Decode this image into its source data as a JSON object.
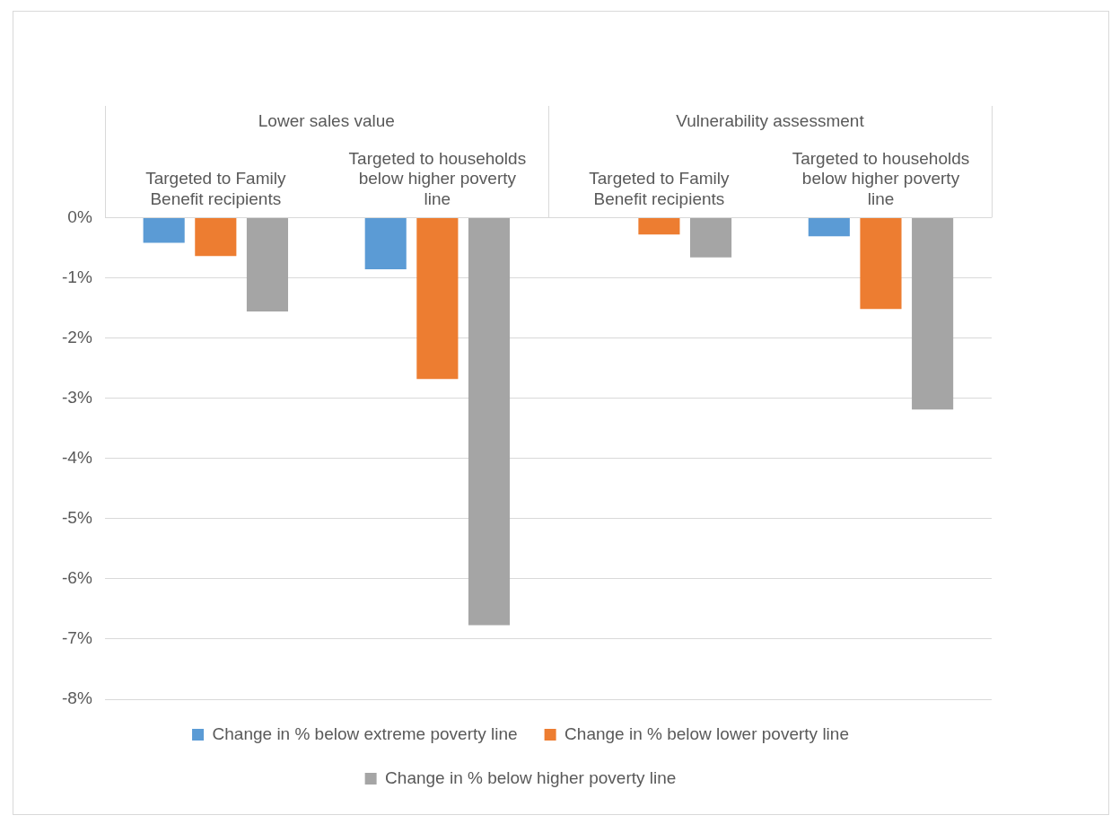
{
  "chart_data": {
    "type": "bar",
    "categories": [
      "Targeted to Family Benefit recipients",
      "Targeted to households below higher poverty line",
      "Targeted to Family Benefit recipients",
      "Targeted to households below higher poverty line"
    ],
    "annotations": [
      "Lower sales value",
      "Vulnerability assessment"
    ],
    "series": [
      {
        "name": "Change in % below extreme poverty line",
        "color": "#5b9bd5",
        "values": [
          -0.42,
          -0.86,
          0,
          -0.31
        ]
      },
      {
        "name": "Change in % below lower poverty line",
        "color": "#ed7d31",
        "values": [
          -0.64,
          -2.68,
          -0.28,
          -1.52
        ]
      },
      {
        "name": "Change in % below higher poverty line",
        "color": "#a5a5a5",
        "values": [
          -1.56,
          -6.77,
          -0.66,
          -3.19
        ]
      }
    ],
    "ylim": [
      -8,
      0
    ],
    "yticks": [
      {
        "value": 0,
        "label": "0%"
      },
      {
        "value": -1,
        "label": "-1%"
      },
      {
        "value": -2,
        "label": "-2%"
      },
      {
        "value": -3,
        "label": "-3%"
      },
      {
        "value": -4,
        "label": "-4%"
      },
      {
        "value": -5,
        "label": "-5%"
      },
      {
        "value": -6,
        "label": "-6%"
      },
      {
        "value": -7,
        "label": "-7%"
      },
      {
        "value": -8,
        "label": "-8%"
      }
    ],
    "grid": "y",
    "legend": "bottom"
  }
}
